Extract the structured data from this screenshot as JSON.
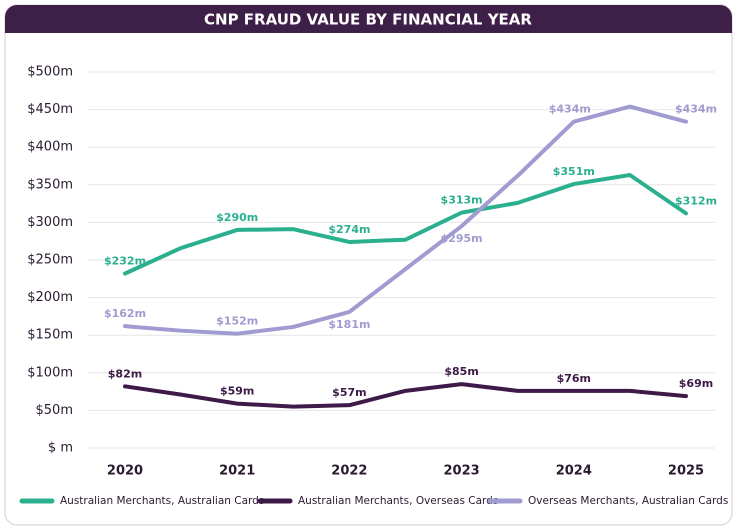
{
  "chart_data": {
    "type": "line",
    "title": "CNP FRAUD VALUE BY FINANCIAL YEAR",
    "x": [
      2020,
      2020.5,
      2021,
      2021.5,
      2022,
      2022.5,
      2023,
      2023.5,
      2024,
      2024.5,
      2025
    ],
    "xlim": [
      2020,
      2025
    ],
    "xticks": [
      2020,
      2021,
      2022,
      2023,
      2024,
      2025
    ],
    "ylim": [
      0,
      500
    ],
    "yticks": [
      {
        "value": 0,
        "label": "$ m"
      },
      {
        "value": 50,
        "label": "$50m"
      },
      {
        "value": 100,
        "label": "$100m"
      },
      {
        "value": 150,
        "label": "$150m"
      },
      {
        "value": 200,
        "label": "$200m"
      },
      {
        "value": 250,
        "label": "$250m"
      },
      {
        "value": 300,
        "label": "$300m"
      },
      {
        "value": 350,
        "label": "$350m"
      },
      {
        "value": 400,
        "label": "$400m"
      },
      {
        "value": 450,
        "label": "$450m"
      },
      {
        "value": 500,
        "label": "$500m"
      }
    ],
    "grid": true,
    "series": [
      {
        "name": "Australian Merchants, Australian Cards",
        "color": "#2bb08f",
        "values": [
          232,
          266,
          290,
          291,
          274,
          277,
          313,
          326,
          351,
          363,
          312
        ],
        "value_labels": [
          "$232m",
          null,
          "$290m",
          null,
          "$274m",
          null,
          "$313m",
          null,
          "$351m",
          null,
          "$312m"
        ]
      },
      {
        "name": "Australian Merchants, Overseas Cards",
        "color": "#3d1a47",
        "values": [
          82,
          71,
          59,
          55,
          57,
          76,
          85,
          76,
          76,
          76,
          69
        ],
        "value_labels": [
          "$82m",
          null,
          "$59m",
          null,
          "$57m",
          null,
          "$85m",
          null,
          "$76m",
          null,
          "$69m"
        ]
      },
      {
        "name": "Overseas Merchants, Australian Cards",
        "color": "#a09bd0",
        "values": [
          162,
          156,
          152,
          161,
          181,
          238,
          295,
          362,
          434,
          454,
          434
        ],
        "value_labels": [
          "$162m",
          null,
          "$152m",
          null,
          "$181m",
          null,
          "$295m",
          null,
          "$434m",
          null,
          "$434m"
        ]
      }
    ]
  }
}
